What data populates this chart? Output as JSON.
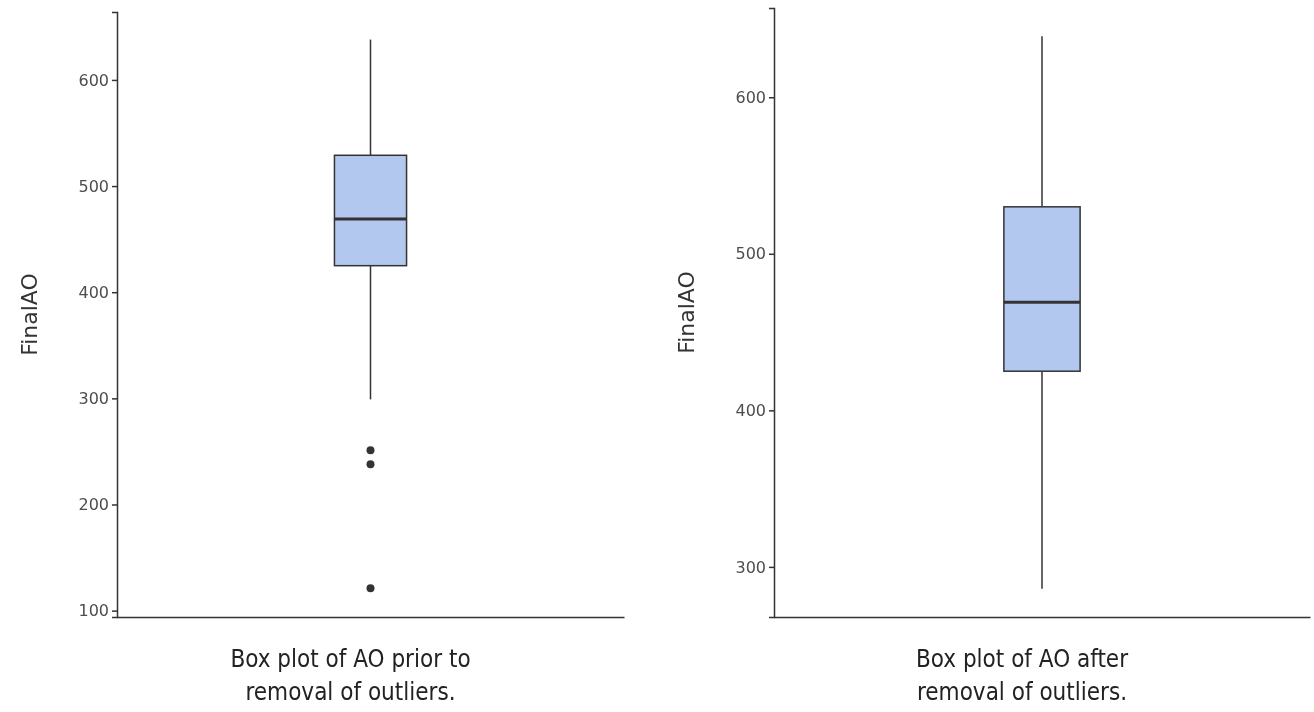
{
  "chart_data": [
    {
      "type": "box",
      "xlabel": "Box plot of AO prior to removal of outliers.",
      "ylabel": "FinalAO",
      "categories": [
        null
      ],
      "color": "#b3c8ee",
      "ylim": [
        94,
        664
      ],
      "yticks": [
        100,
        200,
        300,
        400,
        500,
        600
      ],
      "grid": false,
      "boxes": [
        {
          "low": 299,
          "q1": 425,
          "median": 469,
          "q3": 529,
          "high": 638,
          "outliers": [
            251,
            238,
            121
          ]
        }
      ]
    },
    {
      "type": "box",
      "xlabel": "Box plot of AO after removal of outliers.",
      "ylabel": "FinalAO",
      "categories": [
        null
      ],
      "color": "#b3c8ee",
      "ylim": [
        268,
        657
      ],
      "yticks": [
        300,
        400,
        500,
        600
      ],
      "grid": false,
      "boxes": [
        {
          "low": 286,
          "q1": 425,
          "median": 469,
          "q3": 530,
          "high": 639
        }
      ]
    }
  ]
}
